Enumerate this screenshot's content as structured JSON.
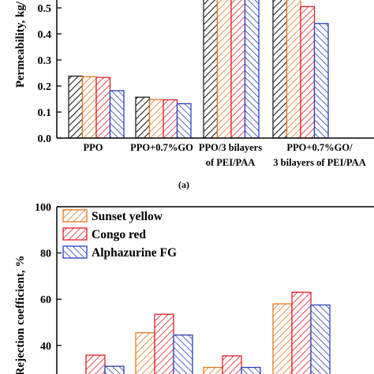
{
  "chart_data": [
    {
      "type": "bar",
      "panel_label": "(a)",
      "ylabel": "Permeability, kg/",
      "ylim": [
        0,
        0.55
      ],
      "yticks": [
        "0.0",
        "0.1",
        "0.2",
        "0.3",
        "0.4",
        "0.5"
      ],
      "categories": [
        [
          "PPO"
        ],
        [
          "PPO+0.7%GO"
        ],
        [
          "PPO/3 bilayers",
          "of PEI/PAA"
        ],
        [
          "PPO+0.7%GO/",
          "3 bilayers of PEI/PAA"
        ]
      ],
      "series": [
        {
          "values": [
            0.238,
            0.157,
            0.6,
            0.6
          ],
          "color": "#222222",
          "hatch": "black"
        },
        {
          "values": [
            0.236,
            0.148,
            0.6,
            0.6
          ],
          "color": "#e07b20",
          "hatch": "orange"
        },
        {
          "values": [
            0.233,
            0.147,
            0.6,
            0.505
          ],
          "color": "#e0202a",
          "hatch": "red"
        },
        {
          "values": [
            0.182,
            0.132,
            0.6,
            0.44
          ],
          "color": "#2a3fb8",
          "hatch": "blue"
        }
      ]
    },
    {
      "type": "bar",
      "ylabel": "Rejection coefficient, %",
      "ylim": [
        30,
        100
      ],
      "yticks": [
        "100",
        "80",
        "60",
        "40"
      ],
      "legend_position": "top-left",
      "series": [
        {
          "name": "Sunset yellow",
          "values": [
            null,
            45.5,
            30.5,
            58
          ],
          "color": "#e07b20"
        },
        {
          "name": "Congo red",
          "values": [
            35.8,
            53.5,
            35.5,
            63
          ],
          "color": "#e0202a"
        },
        {
          "name": "Alphazurine FG",
          "values": [
            31,
            44.5,
            30.5,
            57.5
          ],
          "color": "#2a3fb8"
        }
      ]
    }
  ]
}
